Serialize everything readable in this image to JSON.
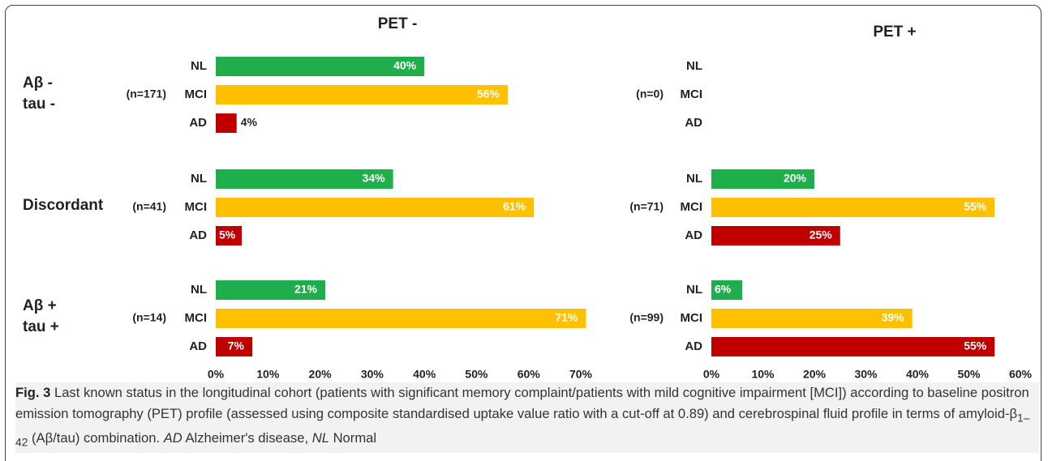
{
  "chart_data": [
    {
      "type": "bar",
      "orientation": "horizontal",
      "title": "PET -",
      "groups": [
        {
          "n_label": "(n=171)",
          "categories": [
            "NL",
            "MCI",
            "AD"
          ],
          "values": [
            40,
            56,
            4
          ],
          "value_labels": [
            "40%",
            "56%",
            "4%"
          ]
        },
        {
          "n_label": "(n=41)",
          "categories": [
            "NL",
            "MCI",
            "AD"
          ],
          "values": [
            34,
            61,
            5
          ],
          "value_labels": [
            "34%",
            "61%",
            "5%"
          ]
        },
        {
          "n_label": "(n=14)",
          "categories": [
            "NL",
            "MCI",
            "AD"
          ],
          "values": [
            21,
            71,
            7
          ],
          "value_labels": [
            "21%",
            "71%",
            "7%"
          ]
        }
      ],
      "colors": [
        "#1fae4b",
        "#ffc000",
        "#c00000"
      ],
      "xlim": [
        0,
        70
      ],
      "xticks": [
        {
          "value": 0,
          "label": "0%"
        },
        {
          "value": 10,
          "label": "10%"
        },
        {
          "value": 20,
          "label": "20%"
        },
        {
          "value": 30,
          "label": "30%"
        },
        {
          "value": 40,
          "label": "40%"
        },
        {
          "value": 50,
          "label": "50%"
        },
        {
          "value": 60,
          "label": "60%"
        },
        {
          "value": 70,
          "label": "70%"
        }
      ]
    },
    {
      "type": "bar",
      "orientation": "horizontal",
      "title": "PET +",
      "groups": [
        {
          "n_label": "(n=0)",
          "categories": [
            "NL",
            "MCI",
            "AD"
          ],
          "values": [
            null,
            null,
            null
          ],
          "value_labels": [
            null,
            null,
            null
          ]
        },
        {
          "n_label": "(n=71)",
          "categories": [
            "NL",
            "MCI",
            "AD"
          ],
          "values": [
            20,
            55,
            25
          ],
          "value_labels": [
            "20%",
            "55%",
            "25%"
          ]
        },
        {
          "n_label": "(n=99)",
          "categories": [
            "NL",
            "MCI",
            "AD"
          ],
          "values": [
            6,
            39,
            55
          ],
          "value_labels": [
            "6%",
            "39%",
            "55%"
          ]
        }
      ],
      "colors": [
        "#1fae4b",
        "#ffc000",
        "#c00000"
      ],
      "xlim": [
        0,
        60
      ],
      "xticks": [
        {
          "value": 0,
          "label": "0%"
        },
        {
          "value": 10,
          "label": "10%"
        },
        {
          "value": 20,
          "label": "20%"
        },
        {
          "value": 30,
          "label": "30%"
        },
        {
          "value": 40,
          "label": "40%"
        },
        {
          "value": 50,
          "label": "50%"
        },
        {
          "value": 60,
          "label": "60%"
        }
      ]
    }
  ],
  "row_labels": [
    [
      "Aβ -",
      "tau -"
    ],
    [
      "Discordant"
    ],
    [
      "Aβ +",
      "tau +"
    ]
  ],
  "caption": {
    "label": "Fig. 3",
    "text_1": "Last known status in the longitudinal cohort (patients with significant memory complaint/patients with mild cognitive impairment [MCI]) according to baseline positron emission tomography (PET) profile (assessed using composite standardised uptake value ratio with a cut-off at 0.89) and cerebrospinal fluid profile in terms of amyloid-β",
    "subscript": "1–42",
    "text_2": "(Aβ/tau) combination.",
    "abbr_1": "AD",
    "text_3": "Alzheimer's disease,",
    "abbr_2": "NL",
    "text_4": "Normal"
  }
}
